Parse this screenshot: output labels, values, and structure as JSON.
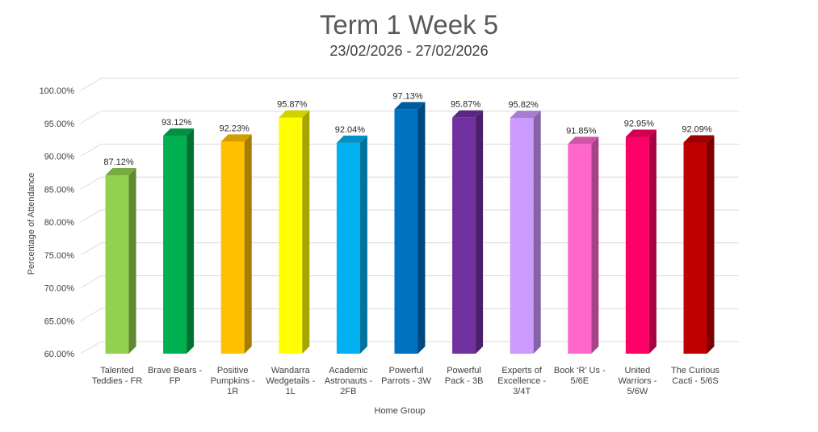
{
  "chart_data": {
    "type": "bar",
    "title": "Term 1 Week 5",
    "subtitle": "23/02/2026 - 27/02/2026",
    "xlabel": "Home Group",
    "ylabel": "Percentage of Attendance",
    "ylim": [
      60,
      100
    ],
    "y_ticks": [
      60,
      65,
      70,
      75,
      80,
      85,
      90,
      95,
      100
    ],
    "y_tick_labels": [
      "60.00%",
      "65.00%",
      "70.00%",
      "75.00%",
      "80.00%",
      "85.00%",
      "90.00%",
      "95.00%",
      "100.00%"
    ],
    "grid": true,
    "categories": [
      [
        "Talented",
        "Teddies - FR"
      ],
      [
        "Brave Bears -",
        "FP"
      ],
      [
        "Positive",
        "Pumpkins -",
        "1R"
      ],
      [
        "Wandarra",
        "Wedgetails -",
        "1L"
      ],
      [
        "Academic",
        "Astronauts -",
        "2FB"
      ],
      [
        "Powerful",
        "Parrots - 3W"
      ],
      [
        "Powerful",
        "Pack - 3B"
      ],
      [
        "Experts of",
        "Excellence -",
        "3/4T"
      ],
      [
        "Book ‘R’ Us -",
        "5/6E"
      ],
      [
        "United",
        "Warriors -",
        "5/6W"
      ],
      [
        "The Curious",
        "Cacti - 5/6S"
      ]
    ],
    "values": [
      87.12,
      93.12,
      92.23,
      95.87,
      92.04,
      97.13,
      95.87,
      95.82,
      91.85,
      92.95,
      92.09
    ],
    "value_labels": [
      "87.12%",
      "93.12%",
      "92.23%",
      "95.87%",
      "92.04%",
      "97.13%",
      "95.87%",
      "95.82%",
      "91.85%",
      "92.95%",
      "92.09%"
    ],
    "colors": [
      "#92D050",
      "#00B050",
      "#FFC000",
      "#FFFF00",
      "#00B0F0",
      "#0070C0",
      "#7030A0",
      "#CC99FF",
      "#FF66CC",
      "#FF0066",
      "#C00000"
    ]
  }
}
